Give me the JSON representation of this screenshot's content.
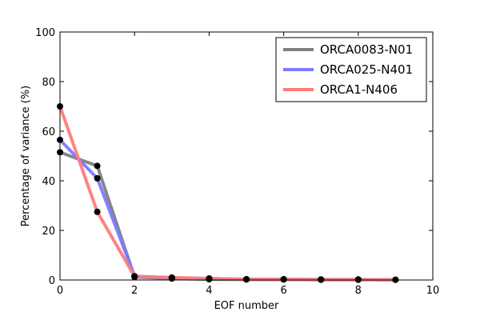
{
  "chart_data": {
    "type": "line",
    "title": "",
    "xlabel": "EOF number",
    "ylabel": "Percentage of variance (%)",
    "xlim": [
      0,
      10
    ],
    "ylim": [
      0,
      100
    ],
    "xticks": [
      "0",
      "2",
      "4",
      "6",
      "8",
      "10"
    ],
    "yticks": [
      "0",
      "20",
      "40",
      "60",
      "80",
      "100"
    ],
    "grid": false,
    "legend_position": "top-right",
    "x": [
      0,
      1,
      2,
      3,
      4,
      5,
      6,
      7,
      8,
      9
    ],
    "series": [
      {
        "name": "ORCA0083-N01",
        "color": "#808080",
        "values": [
          51.5,
          46.0,
          1.2,
          0.6,
          0.3,
          0.2,
          0.2,
          0.1,
          0.1,
          0.1
        ]
      },
      {
        "name": "ORCA025-N401",
        "color": "#7b7bff",
        "values": [
          56.5,
          41.0,
          1.5,
          0.9,
          0.6,
          0.3,
          0.3,
          0.2,
          0.2,
          0.1
        ]
      },
      {
        "name": "ORCA1-N406",
        "color": "#ff7b7b",
        "values": [
          70.0,
          27.5,
          1.5,
          1.0,
          0.6,
          0.3,
          0.3,
          0.2,
          0.2,
          0.1
        ]
      }
    ]
  }
}
